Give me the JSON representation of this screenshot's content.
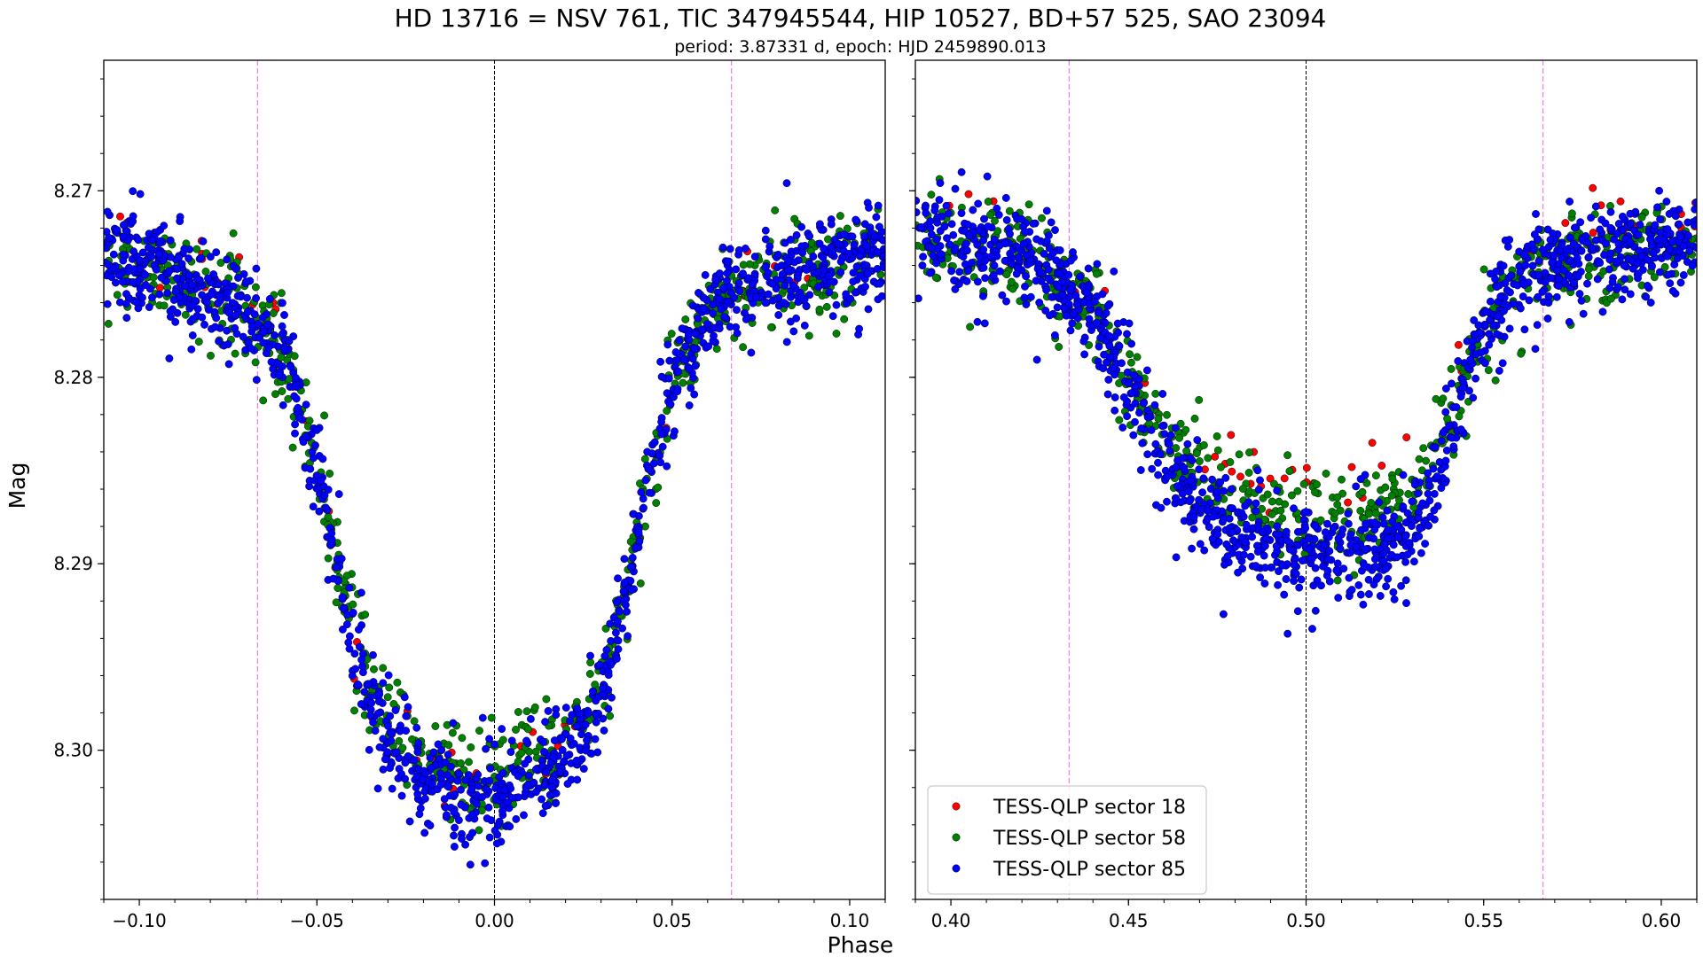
{
  "chart_data": {
    "type": "scatter",
    "title": "HD 13716 = NSV 761, TIC 347945544, HIP 10527, BD+57 525, SAO 23094",
    "subtitle": "period: 3.87331 d, epoch: HJD 2459890.013",
    "xlabel": "Phase",
    "ylabel": "Mag",
    "y_inverted": true,
    "ylim": [
      8.308,
      8.263
    ],
    "yticks": [
      8.27,
      8.28,
      8.29,
      8.3
    ],
    "ytick_labels": [
      "8.27",
      "8.28",
      "8.29",
      "8.30"
    ],
    "panels": [
      {
        "name": "primary eclipse",
        "xlim": [
          -0.11,
          0.11
        ],
        "xticks": [
          -0.1,
          -0.05,
          0.0,
          0.05,
          0.1
        ],
        "xtick_labels": [
          "−0.10",
          "−0.05",
          "0.00",
          "0.05",
          "0.10"
        ],
        "center_line": 0.0,
        "contact_lines": [
          -0.0667,
          0.0667
        ]
      },
      {
        "name": "secondary eclipse",
        "xlim": [
          0.39,
          0.61
        ],
        "xticks": [
          0.4,
          0.45,
          0.5,
          0.55,
          0.6
        ],
        "xtick_labels": [
          "0.40",
          "0.45",
          "0.50",
          "0.55",
          "0.60"
        ],
        "center_line": 0.5,
        "contact_lines": [
          0.4333,
          0.5667
        ]
      }
    ],
    "series": [
      {
        "name": "TESS-QLP sector 18",
        "color": "#ff0000",
        "primary_curve": [
          [
            -0.11,
            8.2725
          ],
          [
            -0.09,
            8.2735
          ],
          [
            -0.07,
            8.2755
          ],
          [
            -0.06,
            8.2775
          ],
          [
            -0.05,
            8.284
          ],
          [
            -0.04,
            8.2945
          ],
          [
            -0.03,
            8.2985
          ],
          [
            -0.02,
            8.3005
          ],
          [
            -0.01,
            8.3015
          ],
          [
            0.0,
            8.3015
          ],
          [
            0.01,
            8.3005
          ],
          [
            0.02,
            8.299
          ],
          [
            0.03,
            8.2965
          ],
          [
            0.04,
            8.2885
          ],
          [
            0.05,
            8.2805
          ],
          [
            0.06,
            8.2765
          ],
          [
            0.08,
            8.2745
          ],
          [
            0.11,
            8.273
          ]
        ],
        "secondary_curve": [
          [
            0.39,
            8.2715
          ],
          [
            0.42,
            8.2725
          ],
          [
            0.44,
            8.2755
          ],
          [
            0.46,
            8.2815
          ],
          [
            0.47,
            8.2835
          ],
          [
            0.48,
            8.2845
          ],
          [
            0.5,
            8.2855
          ],
          [
            0.52,
            8.2855
          ],
          [
            0.53,
            8.2845
          ],
          [
            0.54,
            8.2815
          ],
          [
            0.55,
            8.2765
          ],
          [
            0.56,
            8.2735
          ],
          [
            0.58,
            8.2725
          ],
          [
            0.61,
            8.2715
          ]
        ]
      },
      {
        "name": "TESS-QLP sector 58",
        "color": "#008000",
        "primary_curve": [
          [
            -0.11,
            8.2735
          ],
          [
            -0.09,
            8.2745
          ],
          [
            -0.07,
            8.2765
          ],
          [
            -0.06,
            8.2785
          ],
          [
            -0.05,
            8.2845
          ],
          [
            -0.04,
            8.2935
          ],
          [
            -0.03,
            8.2985
          ],
          [
            -0.02,
            8.3005
          ],
          [
            -0.01,
            8.3015
          ],
          [
            0.0,
            8.3015
          ],
          [
            0.01,
            8.3005
          ],
          [
            0.02,
            8.2995
          ],
          [
            0.03,
            8.2965
          ],
          [
            0.04,
            8.2885
          ],
          [
            0.05,
            8.2805
          ],
          [
            0.06,
            8.2765
          ],
          [
            0.08,
            8.2745
          ],
          [
            0.11,
            8.2735
          ]
        ],
        "secondary_curve": [
          [
            0.39,
            8.2725
          ],
          [
            0.42,
            8.2735
          ],
          [
            0.44,
            8.2765
          ],
          [
            0.46,
            8.2835
          ],
          [
            0.47,
            8.2855
          ],
          [
            0.48,
            8.2865
          ],
          [
            0.5,
            8.2875
          ],
          [
            0.52,
            8.2875
          ],
          [
            0.53,
            8.2865
          ],
          [
            0.54,
            8.2825
          ],
          [
            0.55,
            8.2775
          ],
          [
            0.56,
            8.2745
          ],
          [
            0.58,
            8.2735
          ],
          [
            0.61,
            8.2725
          ]
        ]
      },
      {
        "name": "TESS-QLP sector 85",
        "color": "#0000ff",
        "primary_curve": [
          [
            -0.11,
            8.2735
          ],
          [
            -0.09,
            8.2745
          ],
          [
            -0.07,
            8.2765
          ],
          [
            -0.06,
            8.2785
          ],
          [
            -0.05,
            8.2845
          ],
          [
            -0.04,
            8.2945
          ],
          [
            -0.03,
            8.2995
          ],
          [
            -0.02,
            8.3015
          ],
          [
            -0.01,
            8.3025
          ],
          [
            0.0,
            8.3025
          ],
          [
            0.01,
            8.3015
          ],
          [
            0.02,
            8.3005
          ],
          [
            0.03,
            8.2975
          ],
          [
            0.04,
            8.2885
          ],
          [
            0.05,
            8.2805
          ],
          [
            0.06,
            8.2765
          ],
          [
            0.08,
            8.2745
          ],
          [
            0.11,
            8.2735
          ]
        ],
        "secondary_curve": [
          [
            0.39,
            8.2725
          ],
          [
            0.42,
            8.2735
          ],
          [
            0.44,
            8.2765
          ],
          [
            0.46,
            8.2845
          ],
          [
            0.47,
            8.2875
          ],
          [
            0.48,
            8.2885
          ],
          [
            0.5,
            8.2895
          ],
          [
            0.52,
            8.2895
          ],
          [
            0.53,
            8.2885
          ],
          [
            0.54,
            8.2835
          ],
          [
            0.55,
            8.2775
          ],
          [
            0.56,
            8.2745
          ],
          [
            0.58,
            8.2735
          ],
          [
            0.61,
            8.2725
          ]
        ]
      }
    ],
    "legend": {
      "placement": "lower-left of right panel",
      "entries": [
        "TESS-QLP sector 18",
        "TESS-QLP sector 58",
        "TESS-QLP sector 85"
      ]
    },
    "grid": false
  },
  "colors": {
    "center_line": "#000000",
    "contact_line": "#ee82ee",
    "marker_edge": "#000000"
  }
}
